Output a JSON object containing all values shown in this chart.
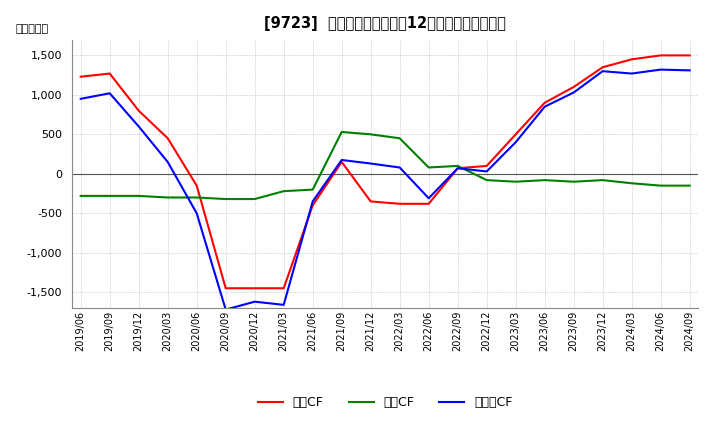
{
  "title": "[9723]  キャッシュフローの12か月移動合計の推移",
  "ylabel": "（百万円）",
  "x_labels": [
    "2019/06",
    "2019/09",
    "2019/12",
    "2020/03",
    "2020/06",
    "2020/09",
    "2020/12",
    "2021/03",
    "2021/06",
    "2021/09",
    "2021/12",
    "2022/03",
    "2022/06",
    "2022/09",
    "2022/12",
    "2023/03",
    "2023/06",
    "2023/09",
    "2023/12",
    "2024/03",
    "2024/06",
    "2024/09"
  ],
  "operating_cf": [
    1230,
    1270,
    800,
    450,
    -150,
    -1450,
    -1450,
    -1450,
    -400,
    150,
    -350,
    -380,
    -380,
    70,
    100,
    500,
    900,
    1100,
    1350,
    1450,
    1500,
    1500
  ],
  "investing_cf": [
    -280,
    -280,
    -280,
    -300,
    -300,
    -320,
    -320,
    -220,
    -200,
    530,
    500,
    450,
    80,
    100,
    -80,
    -100,
    -80,
    -100,
    -80,
    -120,
    -150,
    -150
  ],
  "free_cf": [
    950,
    1020,
    600,
    150,
    -500,
    -1720,
    -1620,
    -1660,
    -350,
    175,
    130,
    80,
    -310,
    70,
    30,
    400,
    850,
    1030,
    1300,
    1270,
    1320,
    1310
  ],
  "colors": {
    "operating": "#ff0000",
    "investing": "#008000",
    "free": "#0000ff"
  },
  "ylim": [
    -1700,
    1700
  ],
  "yticks": [
    -1500,
    -1000,
    -500,
    0,
    500,
    1000,
    1500
  ],
  "legend_labels": [
    "営業CF",
    "投資CF",
    "フリーCF"
  ],
  "background_color": "#ffffff",
  "grid_color": "#aaaaaa"
}
